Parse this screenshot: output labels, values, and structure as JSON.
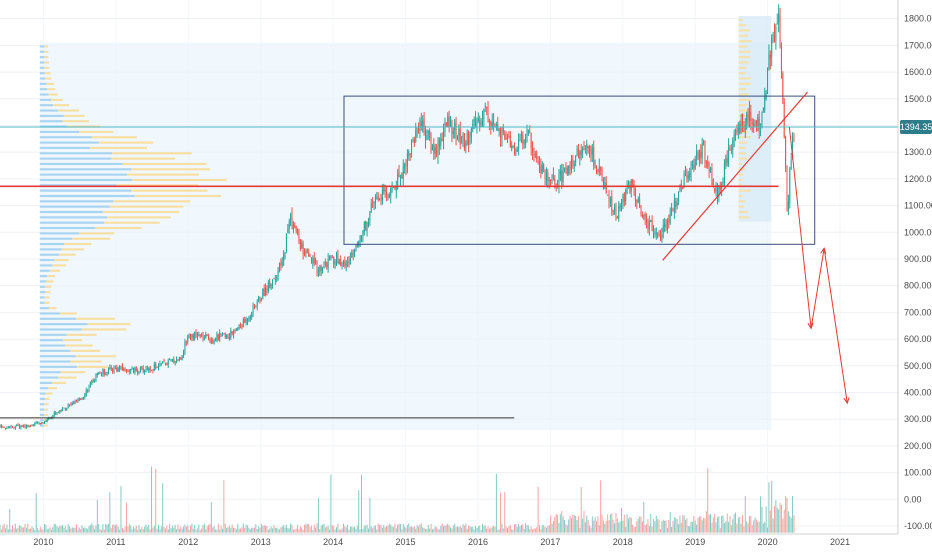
{
  "chart_data": {
    "type": "candlestick",
    "title": "",
    "colors": {
      "up": "#26a69a",
      "down": "#ef5350",
      "up_volume": "#84c9c2",
      "down_volume": "#f5a3a1",
      "profile_up": "#a9d4f2",
      "profile_down": "#f7dfa2",
      "range_box": "#3a4f7a",
      "annotation": "#e53935",
      "support": "#333333",
      "last_price": "#4fb8c6",
      "badge": "#2c7d8a"
    },
    "x_axis": {
      "ticks": [
        "2010",
        "2011",
        "2012",
        "2013",
        "2014",
        "2015",
        "2016",
        "2017",
        "2018",
        "2019",
        "2020",
        "2021"
      ],
      "range": [
        2009.4,
        2021.8
      ]
    },
    "y_axis": {
      "ticks": [
        "1800.00",
        "1700.00",
        "1600.00",
        "1500.00",
        "1400.00",
        "1300.00",
        "1200.00",
        "1100.00",
        "1000.00",
        "900.00",
        "800.00",
        "700.00",
        "600.00",
        "500.00",
        "400.00",
        "300.00",
        "200.00",
        "100.00",
        "0.00",
        "-100.00"
      ],
      "range": [
        -130,
        1840
      ],
      "position": "right"
    },
    "last_price": {
      "label": "1394.35",
      "value": 1394.35
    },
    "price_path": [
      [
        2009.4,
        270
      ],
      [
        2009.8,
        275
      ],
      [
        2010.0,
        290
      ],
      [
        2010.2,
        330
      ],
      [
        2010.5,
        370
      ],
      [
        2010.75,
        470
      ],
      [
        2011.0,
        490
      ],
      [
        2011.3,
        480
      ],
      [
        2011.6,
        500
      ],
      [
        2011.9,
        530
      ],
      [
        2012.0,
        620
      ],
      [
        2012.3,
        600
      ],
      [
        2012.6,
        620
      ],
      [
        2012.8,
        670
      ],
      [
        2013.0,
        760
      ],
      [
        2013.3,
        880
      ],
      [
        2013.4,
        1060
      ],
      [
        2013.6,
        920
      ],
      [
        2013.8,
        860
      ],
      [
        2014.0,
        900
      ],
      [
        2014.2,
        880
      ],
      [
        2014.4,
        1000
      ],
      [
        2014.6,
        1130
      ],
      [
        2014.8,
        1150
      ],
      [
        2015.0,
        1260
      ],
      [
        2015.2,
        1420
      ],
      [
        2015.4,
        1300
      ],
      [
        2015.6,
        1420
      ],
      [
        2015.8,
        1330
      ],
      [
        2016.1,
        1460
      ],
      [
        2016.3,
        1360
      ],
      [
        2016.5,
        1310
      ],
      [
        2016.7,
        1370
      ],
      [
        2016.9,
        1220
      ],
      [
        2017.1,
        1190
      ],
      [
        2017.3,
        1260
      ],
      [
        2017.5,
        1340
      ],
      [
        2017.7,
        1210
      ],
      [
        2017.9,
        1060
      ],
      [
        2018.1,
        1180
      ],
      [
        2018.3,
        1060
      ],
      [
        2018.5,
        970
      ],
      [
        2018.7,
        1100
      ],
      [
        2018.9,
        1230
      ],
      [
        2019.1,
        1320
      ],
      [
        2019.3,
        1140
      ],
      [
        2019.5,
        1330
      ],
      [
        2019.7,
        1440
      ],
      [
        2019.9,
        1400
      ],
      [
        2020.05,
        1700
      ],
      [
        2020.15,
        1790
      ],
      [
        2020.22,
        1420
      ],
      [
        2020.27,
        1080
      ],
      [
        2020.33,
        1300
      ],
      [
        2020.38,
        1394
      ]
    ],
    "annotations": {
      "range_box": {
        "x": [
          2014.15,
          2020.65
        ],
        "y": [
          955,
          1510
        ]
      },
      "support_line": {
        "x": [
          2009.4,
          2016.5
        ],
        "y": 305
      },
      "poc_line": {
        "x": [
          2009.4,
          2020.15
        ],
        "y": 1172
      },
      "trendline": {
        "from": [
          2018.55,
          895
        ],
        "to": [
          2020.55,
          1525
        ]
      },
      "projection": [
        [
          2020.3,
          1394
        ],
        [
          2020.6,
          640
        ],
        [
          2020.78,
          940
        ],
        [
          2021.1,
          360
        ]
      ],
      "volume_profile_start": 2009.95
    }
  }
}
